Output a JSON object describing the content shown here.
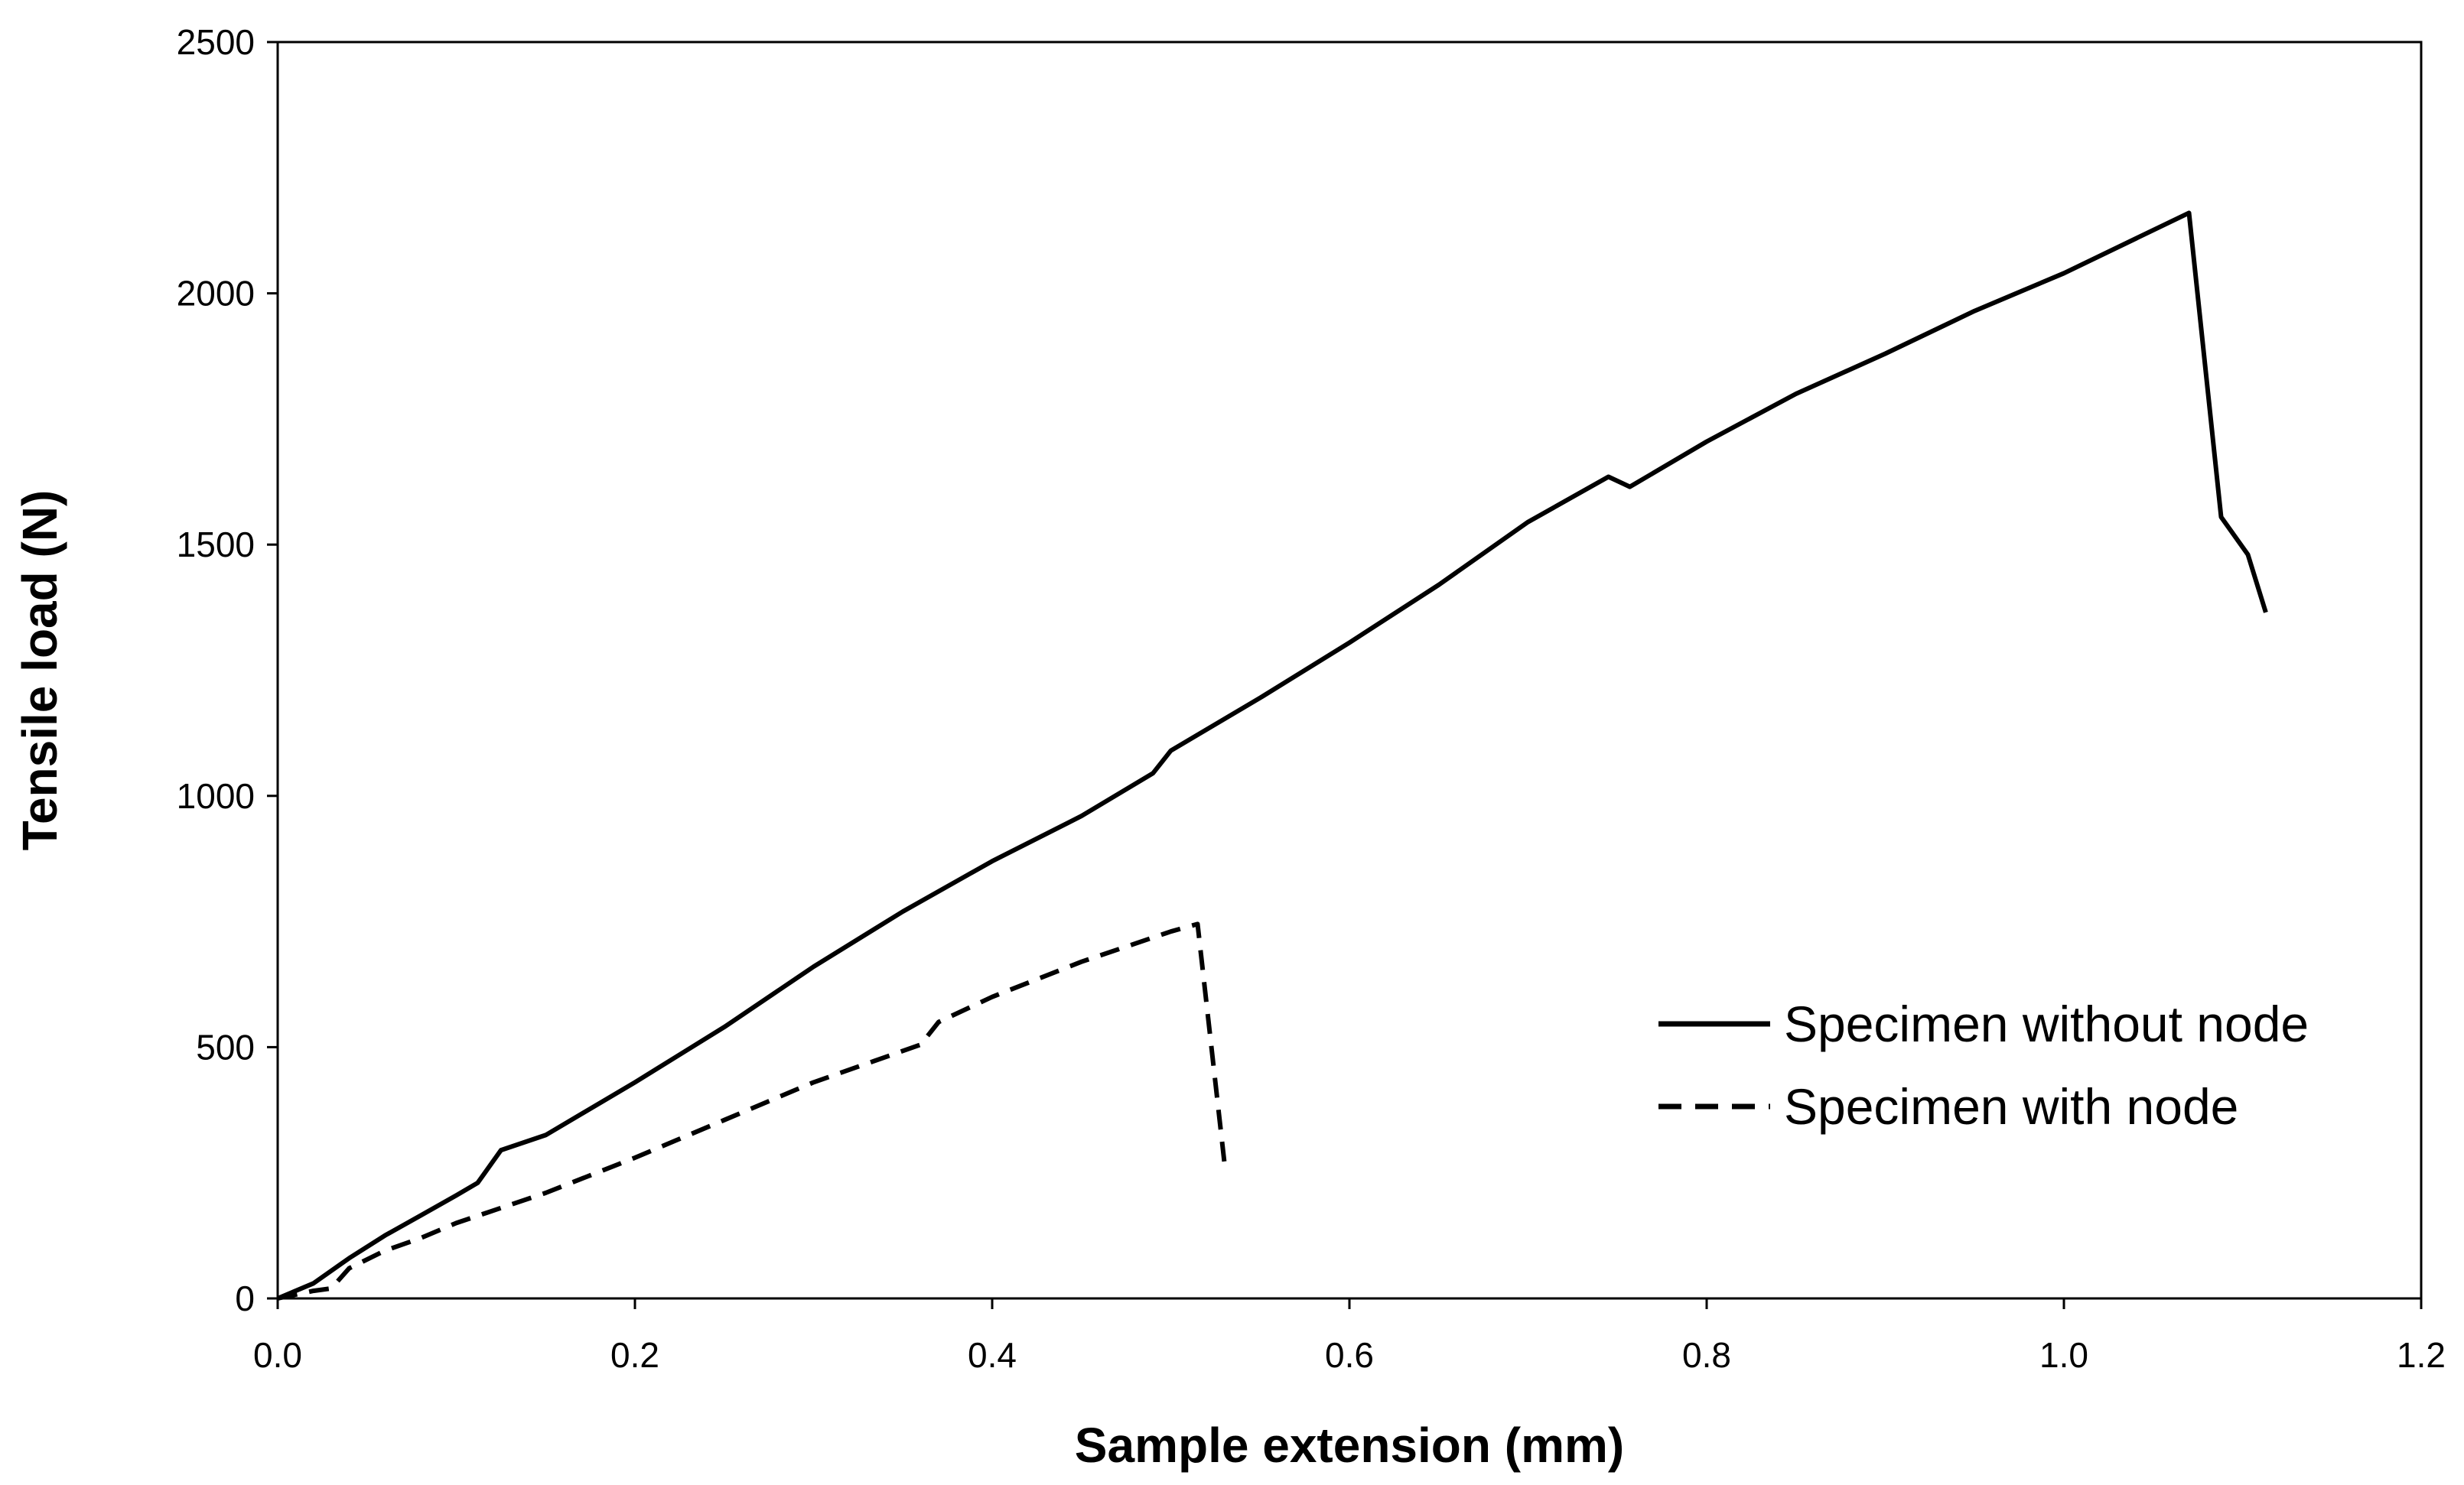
{
  "chart_data": {
    "type": "line",
    "title": "",
    "xlabel": "Sample extension (mm)",
    "ylabel": "Tensile load (N)",
    "xlim": [
      0,
      1.2
    ],
    "ylim": [
      0,
      2500
    ],
    "xticks": [
      0.0,
      0.2,
      0.4,
      0.6,
      0.8,
      1.0,
      1.2
    ],
    "xtick_labels": [
      "0.0",
      "0.2",
      "0.4",
      "0.6",
      "0.8",
      "1.0",
      "1.2"
    ],
    "yticks": [
      0,
      500,
      1000,
      1500,
      2000,
      2500
    ],
    "ytick_labels": [
      "0",
      "500",
      "1000",
      "1500",
      "2000",
      "2500"
    ],
    "grid": false,
    "legend_position": "lower-right",
    "series": [
      {
        "name": "Specimen without node",
        "style": "solid",
        "color": "#000000",
        "x": [
          0.0,
          0.02,
          0.04,
          0.06,
          0.08,
          0.1,
          0.112,
          0.125,
          0.15,
          0.2,
          0.25,
          0.3,
          0.35,
          0.4,
          0.45,
          0.49,
          0.5,
          0.55,
          0.6,
          0.65,
          0.7,
          0.745,
          0.757,
          0.8,
          0.85,
          0.9,
          0.95,
          1.0,
          1.07,
          1.088,
          1.103,
          1.113
        ],
        "y": [
          0,
          30,
          80,
          125,
          165,
          205,
          230,
          295,
          325,
          430,
          540,
          660,
          770,
          870,
          960,
          1045,
          1090,
          1195,
          1305,
          1420,
          1545,
          1635,
          1615,
          1705,
          1800,
          1880,
          1965,
          2040,
          2160,
          1555,
          1480,
          1365
        ]
      },
      {
        "name": "Specimen with node",
        "style": "dashed",
        "color": "#000000",
        "x": [
          0.0,
          0.02,
          0.03,
          0.04,
          0.06,
          0.08,
          0.1,
          0.15,
          0.2,
          0.25,
          0.3,
          0.36,
          0.37,
          0.4,
          0.45,
          0.5,
          0.515,
          0.53
        ],
        "y": [
          0,
          15,
          20,
          60,
          95,
          120,
          150,
          210,
          280,
          355,
          430,
          505,
          550,
          600,
          670,
          730,
          745,
          270
        ]
      }
    ]
  }
}
